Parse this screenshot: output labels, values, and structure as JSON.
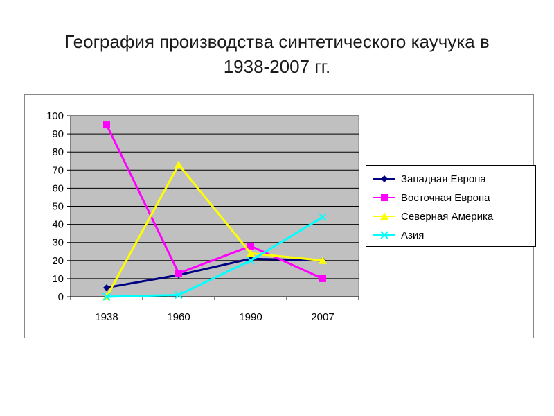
{
  "title": "География производства синтетического каучука в 1938-2007 гг.",
  "chart_data": {
    "type": "line",
    "categories": [
      "1938",
      "1960",
      "1990",
      "2007"
    ],
    "ylim": [
      0,
      100
    ],
    "yticks": [
      0,
      10,
      20,
      30,
      40,
      50,
      60,
      70,
      80,
      90,
      100
    ],
    "plot_background": "#c0c0c0",
    "grid": true,
    "legend_position": "right",
    "series": [
      {
        "name": "Западная Европа",
        "color": "#000080",
        "marker": "diamond",
        "values": [
          5,
          12,
          21,
          20
        ]
      },
      {
        "name": "Восточная Европа",
        "color": "#ff00ff",
        "marker": "square",
        "values": [
          95,
          13,
          28,
          10
        ]
      },
      {
        "name": "Северная Америка",
        "color": "#ffff00",
        "marker": "triangle",
        "values": [
          0,
          73,
          24,
          20
        ]
      },
      {
        "name": "Азия",
        "color": "#00ffff",
        "marker": "x",
        "values": [
          0,
          1,
          20,
          44
        ]
      }
    ]
  }
}
